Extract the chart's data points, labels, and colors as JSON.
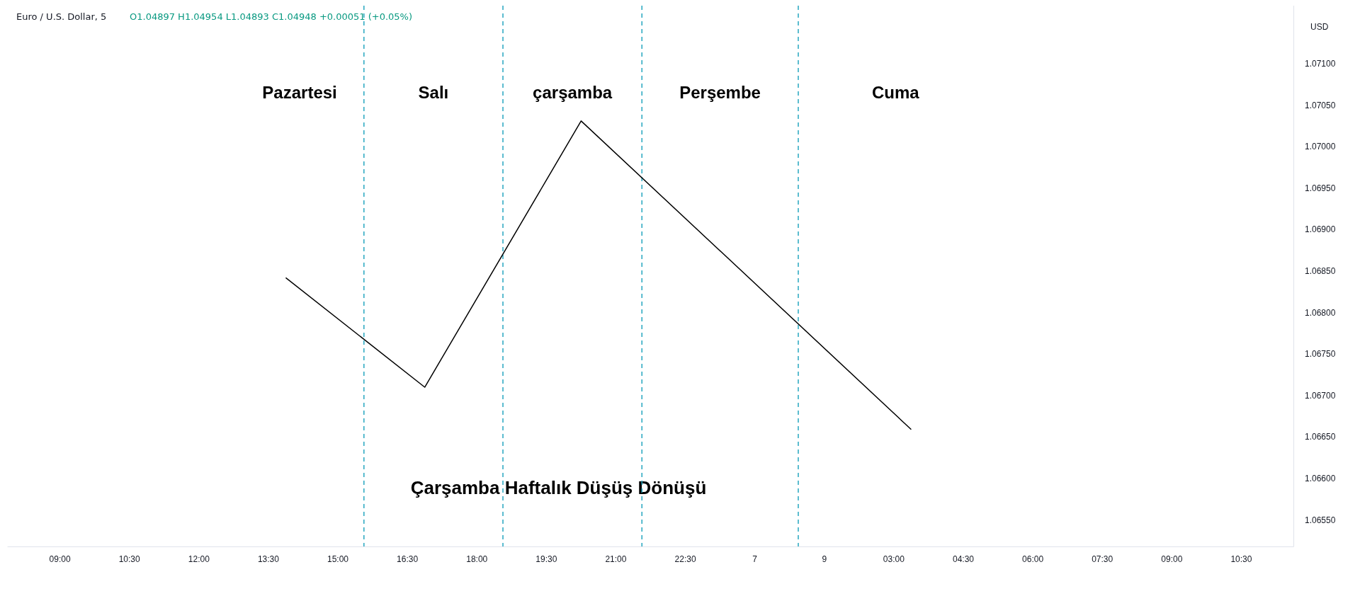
{
  "chart_data": {
    "type": "line",
    "title": "Euro / U.S. Dollar, 5",
    "subtitle": "O1.04897 H1.04954 L1.04893 C1.04948 +0.00051 (+0.05%)",
    "ylabel": "USD",
    "categories": [
      null,
      null,
      null,
      "09:00",
      null,
      null,
      null,
      "10:30",
      null,
      null,
      null,
      "12:00",
      null,
      null,
      null,
      "13:30",
      null,
      null,
      null,
      "15:00",
      null,
      null,
      null,
      "16:30",
      null,
      null,
      null,
      "18:00",
      null,
      null,
      null,
      "19:30",
      null,
      null,
      null,
      "21:00",
      null,
      null,
      null,
      "22:30",
      null,
      null,
      null,
      "7",
      null,
      null,
      null,
      "9",
      null,
      null,
      null,
      "03:00",
      null,
      null,
      null,
      "04:30",
      null,
      null,
      null,
      "06:00",
      null,
      null,
      null,
      "07:30",
      null,
      null,
      null,
      "09:00",
      null,
      null,
      null,
      "10:30",
      null,
      null,
      null
    ],
    "series": [
      {
        "color": "#000000",
        "values": [
          null,
          null,
          null,
          null,
          null,
          null,
          null,
          null,
          null,
          null,
          null,
          null,
          null,
          null,
          null,
          null,
          1.06842,
          null,
          null,
          null,
          null,
          null,
          null,
          null,
          1.0671,
          null,
          null,
          null,
          null,
          null,
          null,
          null,
          null,
          1.07031,
          null,
          null,
          null,
          null,
          null,
          null,
          null,
          null,
          null,
          null,
          null,
          null,
          null,
          null,
          null,
          null,
          null,
          null,
          1.06659,
          null,
          null,
          null,
          null,
          null,
          null,
          null,
          null,
          null,
          null,
          null,
          null,
          null,
          null,
          null,
          null,
          null,
          null,
          null,
          null,
          null,
          null
        ]
      }
    ],
    "ylim": [
      1.06518,
      1.0717
    ],
    "yticks": [
      {
        "value": 1.0655,
        "label": "1.06550"
      },
      {
        "value": 1.066,
        "label": "1.06600"
      },
      {
        "value": 1.0665,
        "label": "1.06650"
      },
      {
        "value": 1.067,
        "label": "1.06700"
      },
      {
        "value": 1.0675,
        "label": "1.06750"
      },
      {
        "value": 1.068,
        "label": "1.06800"
      },
      {
        "value": 1.0685,
        "label": "1.06850"
      },
      {
        "value": 1.069,
        "label": "1.06900"
      },
      {
        "value": 1.0695,
        "label": "1.06950"
      },
      {
        "value": 1.07,
        "label": "1.07000"
      },
      {
        "value": 1.0705,
        "label": "1.07050"
      },
      {
        "value": 1.071,
        "label": "1.07100"
      }
    ],
    "annotations": [
      "Pazartesi",
      "Salı",
      "çarşamba",
      "Perşembe",
      "Cuma",
      "Çarşamba Haftalık Düşüş Dönüşü"
    ],
    "grid": false,
    "marker": "none",
    "line_style": "solid"
  }
}
